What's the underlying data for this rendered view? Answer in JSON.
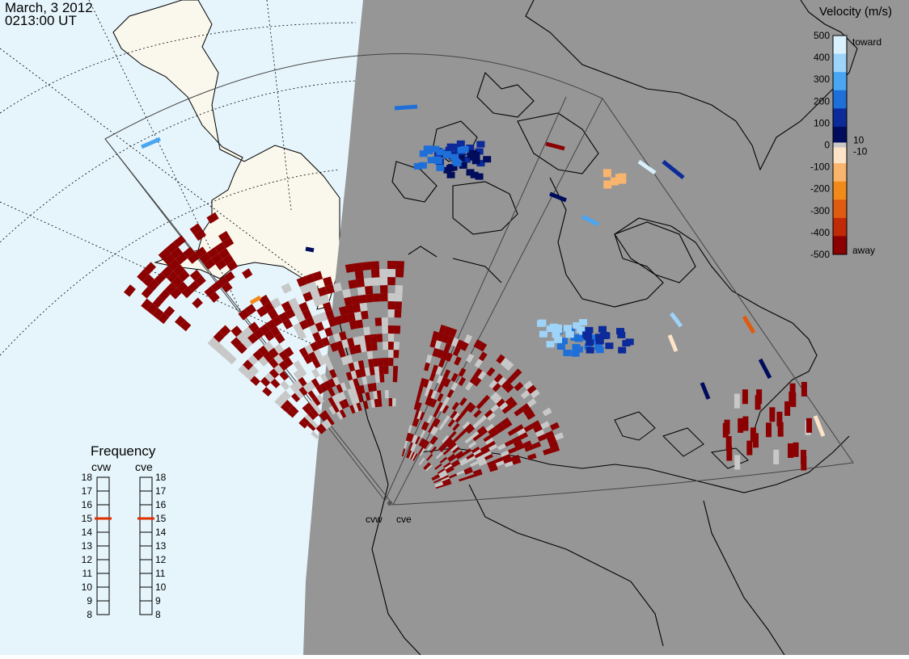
{
  "header": {
    "date": "March, 3 2012",
    "time": "0213:00 UT"
  },
  "legend": {
    "title": "Velocity (m/s)",
    "ticks": [
      "500",
      "400",
      "300",
      "200",
      "100",
      "0",
      "-100",
      "-200",
      "-300",
      "-400",
      "-500"
    ],
    "small_labels": [
      "10",
      "-10"
    ],
    "toward_label": "toward",
    "away_label": "away",
    "colors": [
      "#fde3c8",
      "#f9b46d",
      "#f28a1a",
      "#e05a10",
      "#c02a08",
      "#8b0000",
      "#000c5c",
      "#0c2a9a",
      "#1f6fd9",
      "#4aa6f0",
      "#9fd4fa",
      "#d9f0fe"
    ],
    "zero_color": "#c8c8c8"
  },
  "frequency": {
    "title": "Frequency",
    "radars": [
      "cvw",
      "cve"
    ],
    "scale": [
      "18",
      "17",
      "16",
      "15",
      "14",
      "13",
      "12",
      "11",
      "10",
      "9",
      "8"
    ],
    "cvw_mhz": 15,
    "cve_mhz": 15,
    "marker_color": "#e03000"
  },
  "sites": {
    "west": "cvw",
    "east": "cve"
  },
  "colors": {
    "ocean": "#e6f5fc",
    "land_day": "#faf8ec",
    "night": "#969696",
    "ground_scatter": "#c8c8c8"
  }
}
